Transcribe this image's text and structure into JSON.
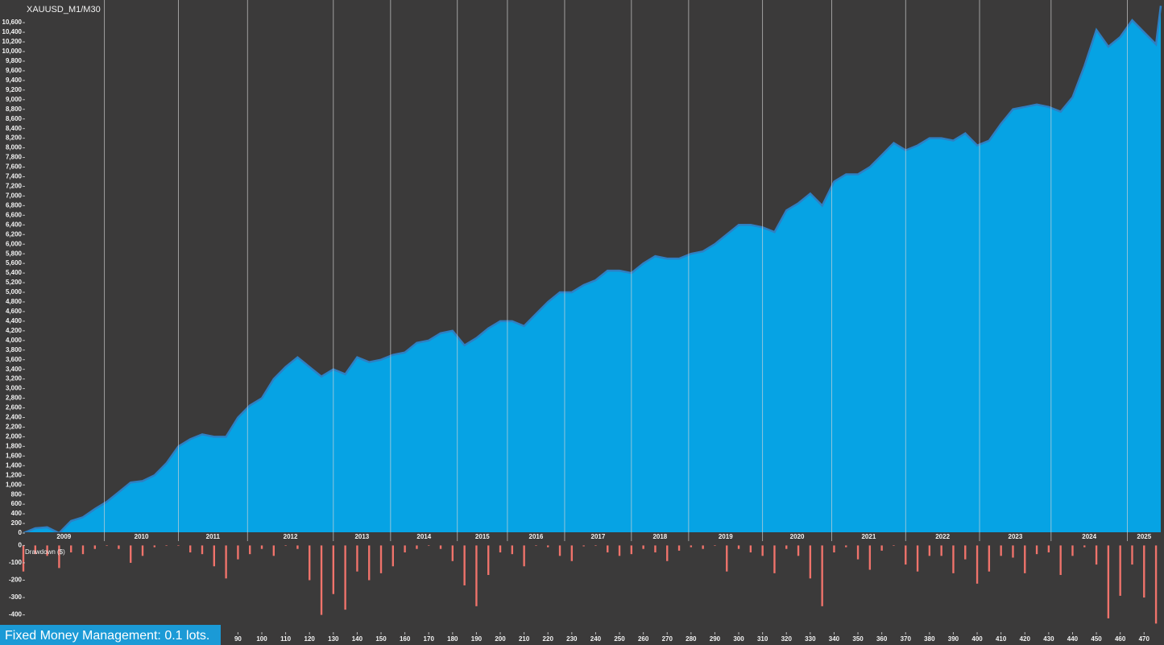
{
  "chart_data": [
    {
      "type": "area",
      "title": "XAUUSD_M1/M30",
      "x": [
        0,
        5,
        10,
        15,
        20,
        25,
        30,
        35,
        40,
        45,
        50,
        55,
        60,
        65,
        70,
        75,
        80,
        85,
        90,
        95,
        100,
        105,
        110,
        115,
        120,
        125,
        130,
        135,
        140,
        145,
        150,
        155,
        160,
        165,
        170,
        175,
        180,
        185,
        190,
        195,
        200,
        205,
        210,
        215,
        220,
        225,
        230,
        235,
        240,
        245,
        250,
        255,
        260,
        265,
        270,
        275,
        280,
        285,
        290,
        295,
        300,
        305,
        310,
        315,
        320,
        325,
        330,
        335,
        340,
        345,
        350,
        355,
        360,
        365,
        370,
        375,
        380,
        385,
        390,
        395,
        400,
        405,
        410,
        415,
        420,
        425,
        430,
        435,
        440,
        445,
        450,
        455,
        460,
        465,
        470,
        475,
        477
      ],
      "values": [
        0,
        100,
        120,
        0,
        250,
        330,
        500,
        650,
        850,
        1050,
        1080,
        1200,
        1450,
        1800,
        1950,
        2050,
        2000,
        2000,
        2400,
        2650,
        2800,
        3200,
        3450,
        3650,
        3450,
        3250,
        3400,
        3300,
        3650,
        3550,
        3600,
        3700,
        3750,
        3950,
        4000,
        4150,
        4200,
        3900,
        4050,
        4250,
        4400,
        4400,
        4300,
        4550,
        4800,
        5000,
        5000,
        5150,
        5250,
        5450,
        5450,
        5400,
        5600,
        5750,
        5700,
        5700,
        5800,
        5850,
        6000,
        6200,
        6400,
        6400,
        6350,
        6250,
        6700,
        6850,
        7050,
        6800,
        7300,
        7450,
        7450,
        7600,
        7850,
        8100,
        7950,
        8050,
        8200,
        8200,
        8150,
        8300,
        8050,
        8150,
        8500,
        8800,
        8850,
        8900,
        8850,
        8750,
        9050,
        9700,
        10450,
        10100,
        10300,
        10650,
        10400,
        10150,
        10950
      ],
      "color": "#06a3e4",
      "line_color": "#2f7fc2",
      "xlim": [
        0,
        477
      ],
      "ylim": [
        0,
        11070
      ],
      "yticks": [
        0,
        200,
        400,
        600,
        800,
        {
          "value": 1000,
          "label": "1,000"
        },
        {
          "value": 1200,
          "label": "1,200"
        },
        {
          "value": 1400,
          "label": "1,400"
        },
        {
          "value": 1600,
          "label": "1,600"
        },
        {
          "value": 1800,
          "label": "1,800"
        },
        {
          "value": 2000,
          "label": "2,000"
        },
        {
          "value": 2200,
          "label": "2,200"
        },
        {
          "value": 2400,
          "label": "2,400"
        },
        {
          "value": 2600,
          "label": "2,600"
        },
        {
          "value": 2800,
          "label": "2,800"
        },
        {
          "value": 3000,
          "label": "3,000"
        },
        {
          "value": 3200,
          "label": "3,200"
        },
        {
          "value": 3400,
          "label": "3,400"
        },
        {
          "value": 3600,
          "label": "3,600"
        },
        {
          "value": 3800,
          "label": "3,800"
        },
        {
          "value": 4000,
          "label": "4,000"
        },
        {
          "value": 4200,
          "label": "4,200"
        },
        {
          "value": 4400,
          "label": "4,400"
        },
        {
          "value": 4600,
          "label": "4,600"
        },
        {
          "value": 4800,
          "label": "4,800"
        },
        {
          "value": 5000,
          "label": "5,000"
        },
        {
          "value": 5200,
          "label": "5,200"
        },
        {
          "value": 5400,
          "label": "5,400"
        },
        {
          "value": 5600,
          "label": "5,600"
        },
        {
          "value": 5800,
          "label": "5,800"
        },
        {
          "value": 6000,
          "label": "6,000"
        },
        {
          "value": 6200,
          "label": "6,200"
        },
        {
          "value": 6400,
          "label": "6,400"
        },
        {
          "value": 6600,
          "label": "6,600"
        },
        {
          "value": 6800,
          "label": "6,800"
        },
        {
          "value": 7000,
          "label": "7,000"
        },
        {
          "value": 7200,
          "label": "7,200"
        },
        {
          "value": 7400,
          "label": "7,400"
        },
        {
          "value": 7600,
          "label": "7,600"
        },
        {
          "value": 7800,
          "label": "7,800"
        },
        {
          "value": 8000,
          "label": "8,000"
        },
        {
          "value": 8200,
          "label": "8,200"
        },
        {
          "value": 8400,
          "label": "8,400"
        },
        {
          "value": 8600,
          "label": "8,600"
        },
        {
          "value": 8800,
          "label": "8,800"
        },
        {
          "value": 9000,
          "label": "9,000"
        },
        {
          "value": 9200,
          "label": "9,200"
        },
        {
          "value": 9400,
          "label": "9,400"
        },
        {
          "value": 9600,
          "label": "9,600"
        },
        {
          "value": 9800,
          "label": "9,800"
        },
        {
          "value": 10000,
          "label": "10,000"
        },
        {
          "value": 10200,
          "label": "10,200"
        },
        {
          "value": 10400,
          "label": "10,400"
        },
        {
          "value": 10600,
          "label": "10,600"
        }
      ],
      "year_labels": [
        "2009",
        "2010",
        "2011",
        "2012",
        "2013",
        "2014",
        "2015",
        "2016",
        "2017",
        "2018",
        "2019",
        "2020",
        "2021",
        "2022",
        "2023",
        "2024",
        "2025"
      ],
      "year_boundaries": [
        34,
        65,
        94,
        130,
        154,
        182,
        203,
        227,
        255,
        279,
        310,
        339,
        370,
        401,
        431,
        463
      ]
    },
    {
      "type": "bar",
      "y_label": "Drawdown ($)",
      "x": [
        0,
        5,
        10,
        15,
        20,
        25,
        30,
        35,
        40,
        45,
        50,
        55,
        60,
        65,
        70,
        75,
        80,
        85,
        90,
        95,
        100,
        105,
        110,
        115,
        120,
        125,
        130,
        135,
        140,
        145,
        150,
        155,
        160,
        165,
        170,
        175,
        180,
        185,
        190,
        195,
        200,
        205,
        210,
        215,
        220,
        225,
        230,
        235,
        240,
        245,
        250,
        255,
        260,
        265,
        270,
        275,
        280,
        285,
        290,
        295,
        300,
        305,
        310,
        315,
        320,
        325,
        330,
        335,
        340,
        345,
        350,
        355,
        360,
        365,
        370,
        375,
        380,
        385,
        390,
        395,
        400,
        405,
        410,
        415,
        420,
        425,
        430,
        435,
        440,
        445,
        450,
        455,
        460,
        465,
        470,
        475
      ],
      "values": [
        -150,
        -50,
        -60,
        -130,
        -40,
        -50,
        -20,
        0,
        -20,
        -100,
        -60,
        -10,
        0,
        0,
        -40,
        -50,
        -120,
        -190,
        -80,
        -50,
        -20,
        -60,
        0,
        -20,
        -200,
        -400,
        -280,
        -370,
        -150,
        -200,
        -160,
        -120,
        -40,
        -20,
        0,
        -20,
        -90,
        -230,
        -350,
        -170,
        -40,
        -50,
        -120,
        0,
        -10,
        -60,
        -90,
        -5,
        0,
        -40,
        -60,
        -50,
        -20,
        -40,
        -90,
        -30,
        -10,
        -20,
        0,
        -150,
        -20,
        -40,
        -60,
        -160,
        -20,
        -60,
        -190,
        -350,
        -40,
        -10,
        -80,
        -140,
        -30,
        0,
        -110,
        -150,
        -60,
        -60,
        -160,
        -80,
        -220,
        -150,
        -60,
        -70,
        -160,
        -50,
        -40,
        -170,
        -60,
        -10,
        -110,
        -420,
        -290,
        -110,
        -300,
        -450
      ],
      "color": "#f0736b",
      "xlim": [
        0,
        477
      ],
      "ylim": [
        -490,
        25
      ],
      "yticks": [
        0,
        -100,
        -200,
        -300,
        -400
      ],
      "xticks": [
        90,
        100,
        110,
        120,
        130,
        140,
        150,
        160,
        170,
        180,
        190,
        200,
        210,
        220,
        230,
        240,
        250,
        260,
        270,
        280,
        290,
        300,
        310,
        320,
        330,
        340,
        350,
        360,
        370,
        380,
        390,
        400,
        410,
        420,
        430,
        440,
        450,
        460,
        470
      ],
      "annotation": "Fixed Money Management: 0.1 lots."
    }
  ]
}
